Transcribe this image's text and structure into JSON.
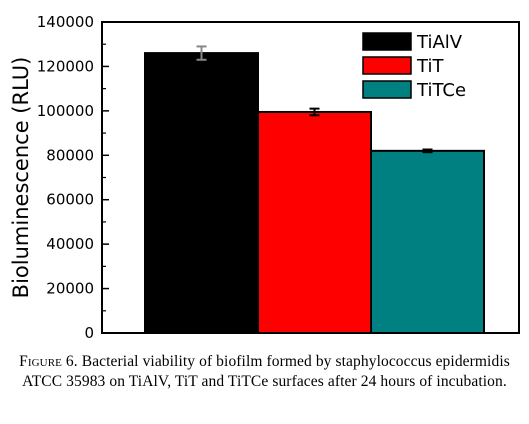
{
  "chart_data": {
    "type": "bar",
    "title": "",
    "xlabel": "",
    "ylabel": "Bioluminescence (RLU)",
    "categories": [
      "TiAlV",
      "TiT",
      "TiTCe"
    ],
    "values": [
      126000,
      99500,
      82000
    ],
    "errors": [
      3000,
      1500,
      600
    ],
    "colors": [
      "#000000",
      "#ff0000",
      "#008080"
    ],
    "ylim": [
      0,
      140000
    ],
    "yticks": [
      0,
      20000,
      40000,
      60000,
      80000,
      100000,
      120000,
      140000
    ],
    "ytick_labels": [
      "0",
      "20000",
      "40000",
      "60000",
      "80000",
      "100000",
      "120000",
      "140000"
    ],
    "legend": [
      "TiAlV",
      "TiT",
      "TiTCe"
    ],
    "legend_position": "top-right",
    "grid": false
  },
  "caption": {
    "figure_label": "Figure 6.",
    "text": "Bacterial viability of biofilm formed by staphylococcus epidermidis ATCC 35983 on TiAlV, TiT and TiTCe surfaces after 24 hours of incubation."
  }
}
